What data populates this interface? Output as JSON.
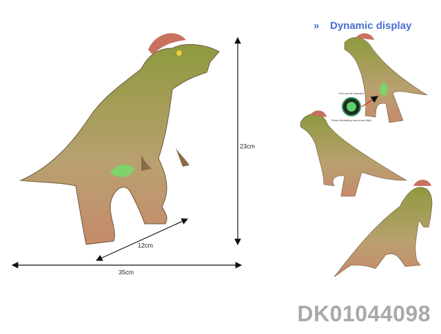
{
  "header": {
    "title": "Dynamic display"
  },
  "dimensions": {
    "height": "23cm",
    "depth": "12cm",
    "width": "35cm"
  },
  "callout": {
    "top": "Pull out the insulator",
    "bottom": "Press interesting sound and light"
  },
  "product_code": "DK01044098"
}
